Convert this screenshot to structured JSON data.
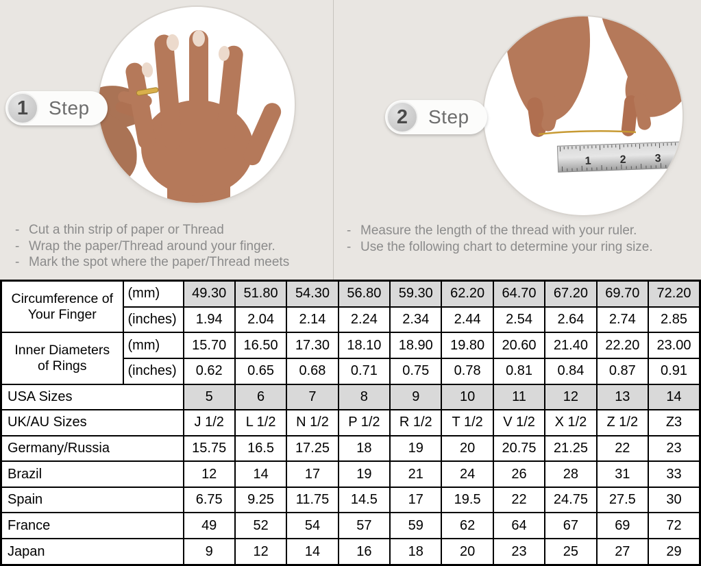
{
  "steps": [
    {
      "number": "1",
      "label": "Step",
      "instructions": [
        "Cut a thin strip of paper or Thread",
        "Wrap the paper/Thread around your finger.",
        "Mark the spot where the paper/Thread meets"
      ]
    },
    {
      "number": "2",
      "label": "Step",
      "instructions": [
        "Measure the length of the thread with your ruler.",
        "Use the following chart to determine your ring size."
      ]
    }
  ],
  "illustrations": {
    "circle1": "hand-with-ring-and-thread-photo",
    "circle2": "hands-measuring-thread-with-ruler-photo",
    "ruler_numbers": [
      "1",
      "2",
      "3"
    ]
  },
  "table": {
    "groups": [
      {
        "label": "Circumference of Your Finger",
        "rows": [
          {
            "sublabel": "(mm)",
            "shaded": true,
            "values": [
              "49.30",
              "51.80",
              "54.30",
              "56.80",
              "59.30",
              "62.20",
              "64.70",
              "67.20",
              "69.70",
              "72.20"
            ]
          },
          {
            "sublabel": "(inches)",
            "shaded": false,
            "values": [
              "1.94",
              "2.04",
              "2.14",
              "2.24",
              "2.34",
              "2.44",
              "2.54",
              "2.64",
              "2.74",
              "2.85"
            ]
          }
        ]
      },
      {
        "label": "Inner Diameters of Rings",
        "rows": [
          {
            "sublabel": "(mm)",
            "shaded": false,
            "values": [
              "15.70",
              "16.50",
              "17.30",
              "18.10",
              "18.90",
              "19.80",
              "20.60",
              "21.40",
              "22.20",
              "23.00"
            ]
          },
          {
            "sublabel": "(inches)",
            "shaded": false,
            "values": [
              "0.62",
              "0.65",
              "0.68",
              "0.71",
              "0.75",
              "0.78",
              "0.81",
              "0.84",
              "0.87",
              "0.91"
            ]
          }
        ]
      }
    ],
    "simple_rows": [
      {
        "label": "USA Sizes",
        "shaded": true,
        "values": [
          "5",
          "6",
          "7",
          "8",
          "9",
          "10",
          "11",
          "12",
          "13",
          "14"
        ]
      },
      {
        "label": "UK/AU Sizes",
        "shaded": false,
        "values": [
          "J 1/2",
          "L 1/2",
          "N 1/2",
          "P 1/2",
          "R 1/2",
          "T 1/2",
          "V 1/2",
          "X 1/2",
          "Z 1/2",
          "Z3"
        ]
      },
      {
        "label": "Germany/Russia",
        "shaded": false,
        "values": [
          "15.75",
          "16.5",
          "17.25",
          "18",
          "19",
          "20",
          "20.75",
          "21.25",
          "22",
          "23"
        ]
      },
      {
        "label": "Brazil",
        "shaded": false,
        "values": [
          "12",
          "14",
          "17",
          "19",
          "21",
          "24",
          "26",
          "28",
          "31",
          "33"
        ]
      },
      {
        "label": "Spain",
        "shaded": false,
        "values": [
          "6.75",
          "9.25",
          "11.75",
          "14.5",
          "17",
          "19.5",
          "22",
          "24.75",
          "27.5",
          "30"
        ]
      },
      {
        "label": "France",
        "shaded": false,
        "values": [
          "49",
          "52",
          "54",
          "57",
          "59",
          "62",
          "64",
          "67",
          "69",
          "72"
        ]
      },
      {
        "label": "Japan",
        "shaded": false,
        "values": [
          "9",
          "12",
          "14",
          "16",
          "18",
          "20",
          "23",
          "25",
          "27",
          "29"
        ]
      }
    ]
  },
  "colors": {
    "page_bg": "#e9e6e2",
    "shaded_cell": "#d9d9d9",
    "table_border": "#000000",
    "instruction_text": "#8b8b8b",
    "skin_tone": "#b5795a",
    "ring_gold": "#d9b04c"
  }
}
